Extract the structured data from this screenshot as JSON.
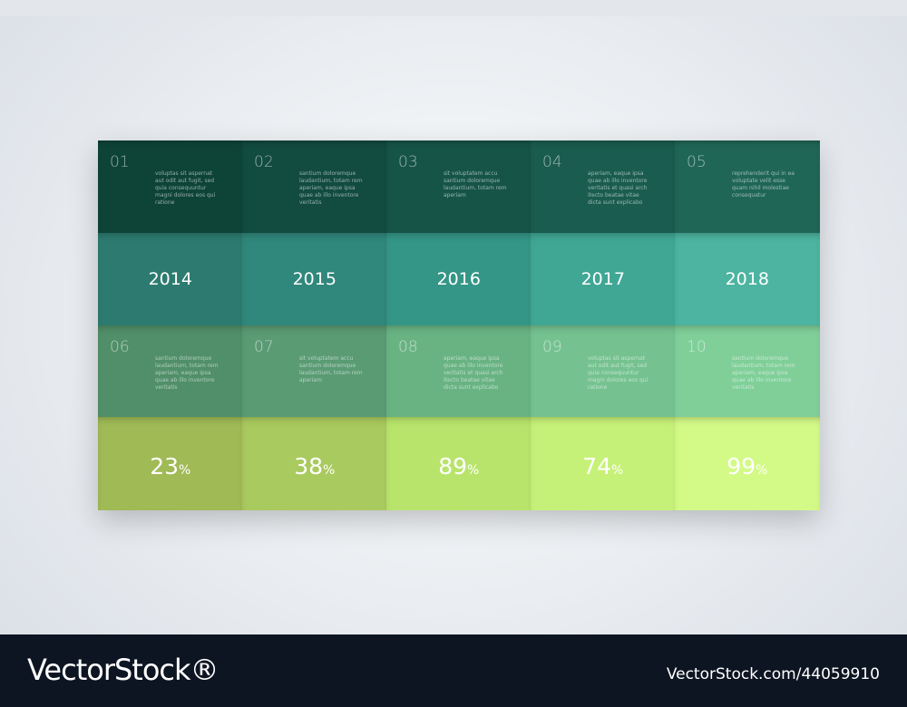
{
  "top_items": [
    {
      "number": "01",
      "text": "voluptas sit aspernat aut odit aut fugit, sed quia consequuntur magni dolores eos qui ratione"
    },
    {
      "number": "02",
      "text": "santium doloremque laudantium, totam rem aperiam, eaque ipsa quae ab illo inventore veritatis"
    },
    {
      "number": "03",
      "text": "sit voluptatem accu santium doloremque laudantium, totam rem aperiam"
    },
    {
      "number": "04",
      "text": "aperiam, eaque ipsa quae ab illo inventore veritatis et quasi arch itecto beatae vitae dicta sunt explicabo"
    },
    {
      "number": "05",
      "text": "reprehenderit qui in ea voluptate velit esse quam nihil molestiae consequatur"
    }
  ],
  "years": [
    "2014",
    "2015",
    "2016",
    "2017",
    "2018"
  ],
  "bottom_items": [
    {
      "number": "06",
      "text": "santium doloremque laudantium, totam rem aperiam, eaque ipsa quae ab illo inventore veritatis"
    },
    {
      "number": "07",
      "text": "sit voluptatem accu santium doloremque laudantium, totam rem aperiam"
    },
    {
      "number": "08",
      "text": "aperiam, eaque ipsa quae ab illo inventore veritatis et quasi arch itecto beatae vitae dicta sunt explicabo"
    },
    {
      "number": "09",
      "text": "voluptas sit aspernat aut odit aut fugit, sed quia consequuntur magni dolores eos qui ratione"
    },
    {
      "number": "10",
      "text": "santium doloremque laudantium, totam rem aperiam, eaque ipsa quae ab illo inventore veritatis"
    }
  ],
  "percentages": [
    {
      "value": "23",
      "unit": "%"
    },
    {
      "value": "38",
      "unit": "%"
    },
    {
      "value": "89",
      "unit": "%"
    },
    {
      "value": "74",
      "unit": "%"
    },
    {
      "value": "99",
      "unit": "%"
    }
  ],
  "footer": {
    "brand": "VectorStock®",
    "id": "VectorStock.com/44059910"
  }
}
